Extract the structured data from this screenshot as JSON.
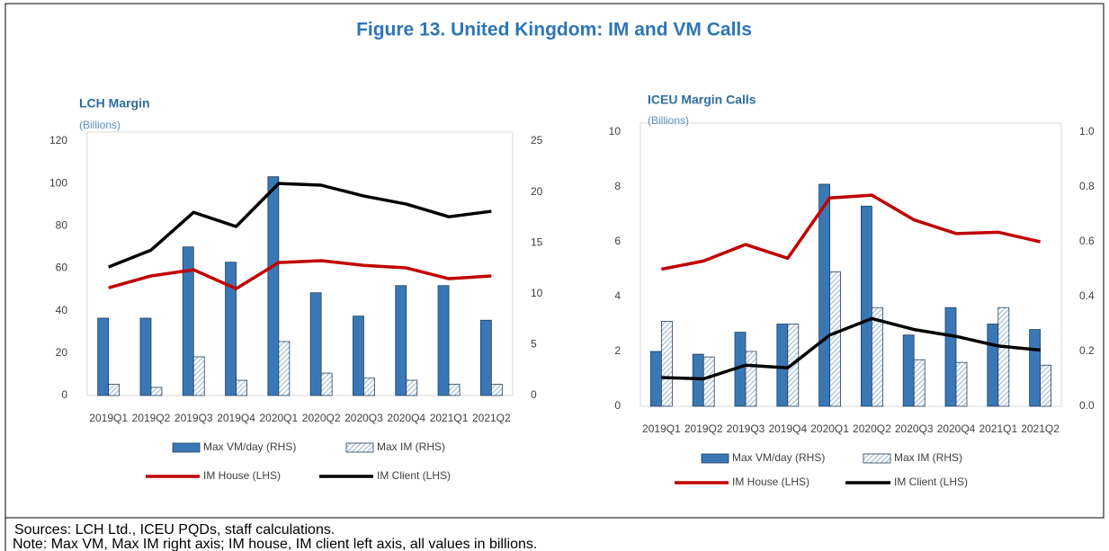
{
  "title": "Figure 13. United Kingdom: IM and VM Calls",
  "sources": "Sources: LCH Ltd., ICEU PQDs, staff calculations.",
  "note": "Note: Max VM, Max IM right axis; IM house, IM client left axis, all values in billions.",
  "chart_data": [
    {
      "type": "bar",
      "title": "LCH Margin",
      "subtitle": "(Billions)",
      "categories": [
        "2019Q1",
        "2019Q2",
        "2019Q3",
        "2019Q4",
        "2020Q1",
        "2020Q2",
        "2020Q3",
        "2020Q4",
        "2021Q1",
        "2021Q2"
      ],
      "ylim": [
        0,
        120
      ],
      "yticks": [
        0,
        20,
        40,
        60,
        80,
        100,
        120
      ],
      "y2lim": [
        0,
        25
      ],
      "y2ticks": [
        0,
        5,
        10,
        15,
        20,
        25
      ],
      "series": [
        {
          "name": "Max VM/day (RHS)",
          "type": "bar",
          "fill": "solid",
          "color": "#3a78b5",
          "axis": "y2",
          "values": [
            7.6,
            7.6,
            14.6,
            13.1,
            21.5,
            10.1,
            7.8,
            10.8,
            10.8,
            7.4
          ]
        },
        {
          "name": "Max IM (RHS)",
          "type": "bar",
          "fill": "hatched",
          "color": "#7f9fbf",
          "axis": "y2",
          "values": [
            1.1,
            0.8,
            3.8,
            1.5,
            5.3,
            2.2,
            1.7,
            1.5,
            1.1,
            1.1
          ]
        },
        {
          "name": "IM House (LHS)",
          "type": "line",
          "color": "#c00000",
          "values": [
            50.8,
            56.4,
            59.3,
            50.4,
            62.7,
            63.6,
            61.4,
            60.2,
            55.1,
            56.4
          ]
        },
        {
          "name": "IM Client (LHS)",
          "type": "line",
          "color": "#000000",
          "values": [
            60.6,
            68.6,
            86.4,
            79.7,
            100,
            99.2,
            94.1,
            90.3,
            84.3,
            86.9
          ]
        }
      ]
    },
    {
      "type": "bar",
      "title": "ICEU Margin Calls",
      "subtitle": "(Billions)",
      "categories": [
        "2019Q1",
        "2019Q2",
        "2019Q3",
        "2019Q4",
        "2020Q1",
        "2020Q2",
        "2020Q3",
        "2020Q4",
        "2021Q1",
        "2021Q2"
      ],
      "ylim": [
        0,
        10
      ],
      "yticks": [
        0,
        2,
        4,
        6,
        8,
        10
      ],
      "y2lim": [
        0,
        1
      ],
      "y2ticks": [
        {
          "value": 0,
          "label": "0.0"
        },
        0.2,
        0.4,
        0.6,
        0.8,
        {
          "value": 1,
          "label": "1.0"
        }
      ],
      "series": [
        {
          "name": "Max VM/day (RHS)",
          "type": "bar",
          "fill": "solid",
          "color": "#3a78b5",
          "axis": "y2",
          "values": [
            0.2,
            0.19,
            0.27,
            0.3,
            0.81,
            0.73,
            0.26,
            0.36,
            0.3,
            0.28
          ]
        },
        {
          "name": "Max IM (RHS)",
          "type": "bar",
          "fill": "hatched",
          "color": "#7f9fbf",
          "axis": "y2",
          "values": [
            0.31,
            0.18,
            0.2,
            0.3,
            0.49,
            0.36,
            0.17,
            0.16,
            0.36,
            0.15
          ]
        },
        {
          "name": "IM House (LHS)",
          "type": "line",
          "color": "#c00000",
          "values": [
            5.0,
            5.3,
            5.9,
            5.4,
            7.6,
            7.7,
            6.8,
            6.3,
            6.35,
            6.0
          ]
        },
        {
          "name": "IM Client (LHS)",
          "type": "line",
          "color": "#000000",
          "values": [
            1.05,
            1.0,
            1.5,
            1.4,
            2.6,
            3.2,
            2.8,
            2.55,
            2.2,
            2.05
          ]
        }
      ]
    }
  ]
}
